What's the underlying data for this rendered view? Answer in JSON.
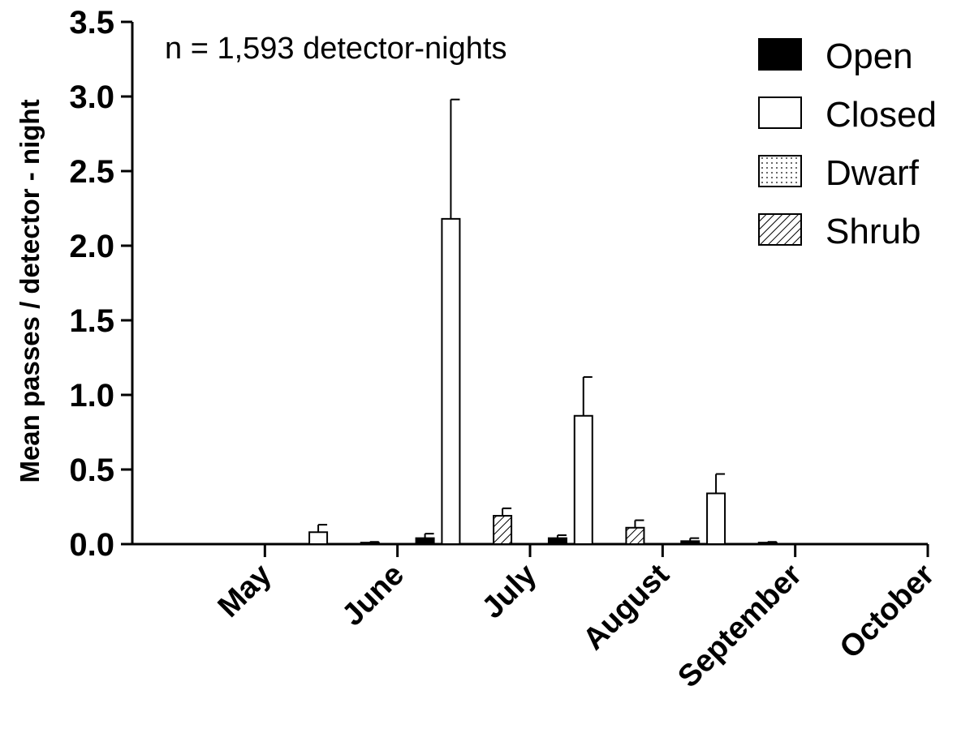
{
  "chart_data": {
    "type": "bar",
    "title": "",
    "annotation": "n = 1,593 detector-nights",
    "xlabel": "",
    "ylabel": "Mean passes / detector - night",
    "ylim": [
      0,
      3.5
    ],
    "yticks": [
      "0.0",
      "0.5",
      "1.0",
      "1.5",
      "2.0",
      "2.5",
      "3.0",
      "3.5"
    ],
    "grid": false,
    "legend_position": "top-right",
    "categories": [
      "May",
      "June",
      "July",
      "August",
      "September",
      "October"
    ],
    "series": [
      {
        "name": "Open",
        "fill": "solid",
        "color": "#000000",
        "values": [
          0,
          0,
          0.04,
          0.04,
          0.02,
          0
        ],
        "errors": [
          0,
          0,
          0.03,
          0.02,
          0.02,
          0
        ]
      },
      {
        "name": "Closed",
        "fill": "white",
        "color": "#ffffff",
        "values": [
          0,
          0.08,
          2.18,
          0.86,
          0.34,
          0
        ],
        "errors": [
          0,
          0.05,
          0.8,
          0.26,
          0.13,
          0
        ]
      },
      {
        "name": "Dwarf",
        "fill": "dotted",
        "color": "#ffffff",
        "values": [
          0,
          0,
          0,
          0,
          0,
          0
        ],
        "errors": [
          0,
          0,
          0,
          0,
          0,
          0
        ]
      },
      {
        "name": "Shrub",
        "fill": "hatched",
        "color": "#ffffff",
        "values": [
          0,
          0.01,
          0.19,
          0.11,
          0.01,
          0
        ],
        "errors": [
          0,
          0.005,
          0.05,
          0.05,
          0.005,
          0
        ]
      }
    ]
  }
}
